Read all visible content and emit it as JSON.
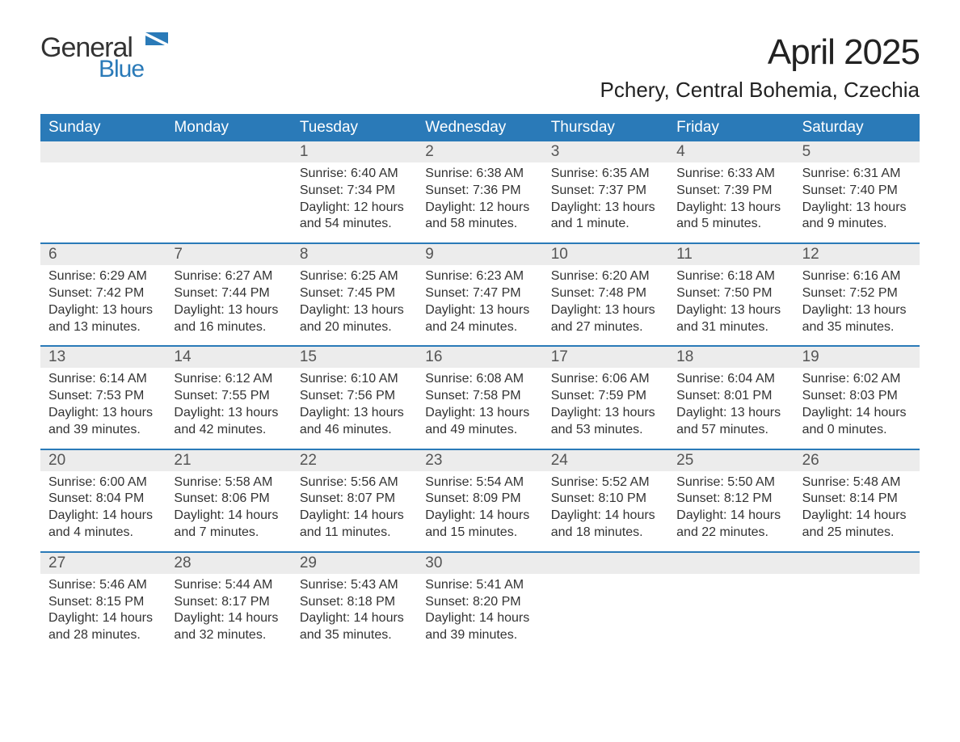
{
  "logo": {
    "top": "General",
    "bottom": "Blue",
    "flag_color": "#2a7ab8",
    "text_gray": "#333333"
  },
  "header": {
    "month_title": "April 2025",
    "location": "Pchery, Central Bohemia, Czechia"
  },
  "colors": {
    "header_bg": "#2a7ab8",
    "header_text": "#ffffff",
    "daynum_bg": "#ececec",
    "daynum_text": "#555555",
    "body_text": "#333333",
    "week_border": "#2a7ab8",
    "page_bg": "#ffffff"
  },
  "fonts": {
    "title_size_pt": 33,
    "location_size_pt": 20,
    "weekday_size_pt": 14,
    "body_size_pt": 12
  },
  "weekdays": [
    "Sunday",
    "Monday",
    "Tuesday",
    "Wednesday",
    "Thursday",
    "Friday",
    "Saturday"
  ],
  "weeks": [
    [
      {
        "n": "",
        "sunrise": "",
        "sunset": "",
        "daylight": ""
      },
      {
        "n": "",
        "sunrise": "",
        "sunset": "",
        "daylight": ""
      },
      {
        "n": "1",
        "sunrise": "Sunrise: 6:40 AM",
        "sunset": "Sunset: 7:34 PM",
        "daylight": "Daylight: 12 hours and 54 minutes."
      },
      {
        "n": "2",
        "sunrise": "Sunrise: 6:38 AM",
        "sunset": "Sunset: 7:36 PM",
        "daylight": "Daylight: 12 hours and 58 minutes."
      },
      {
        "n": "3",
        "sunrise": "Sunrise: 6:35 AM",
        "sunset": "Sunset: 7:37 PM",
        "daylight": "Daylight: 13 hours and 1 minute."
      },
      {
        "n": "4",
        "sunrise": "Sunrise: 6:33 AM",
        "sunset": "Sunset: 7:39 PM",
        "daylight": "Daylight: 13 hours and 5 minutes."
      },
      {
        "n": "5",
        "sunrise": "Sunrise: 6:31 AM",
        "sunset": "Sunset: 7:40 PM",
        "daylight": "Daylight: 13 hours and 9 minutes."
      }
    ],
    [
      {
        "n": "6",
        "sunrise": "Sunrise: 6:29 AM",
        "sunset": "Sunset: 7:42 PM",
        "daylight": "Daylight: 13 hours and 13 minutes."
      },
      {
        "n": "7",
        "sunrise": "Sunrise: 6:27 AM",
        "sunset": "Sunset: 7:44 PM",
        "daylight": "Daylight: 13 hours and 16 minutes."
      },
      {
        "n": "8",
        "sunrise": "Sunrise: 6:25 AM",
        "sunset": "Sunset: 7:45 PM",
        "daylight": "Daylight: 13 hours and 20 minutes."
      },
      {
        "n": "9",
        "sunrise": "Sunrise: 6:23 AM",
        "sunset": "Sunset: 7:47 PM",
        "daylight": "Daylight: 13 hours and 24 minutes."
      },
      {
        "n": "10",
        "sunrise": "Sunrise: 6:20 AM",
        "sunset": "Sunset: 7:48 PM",
        "daylight": "Daylight: 13 hours and 27 minutes."
      },
      {
        "n": "11",
        "sunrise": "Sunrise: 6:18 AM",
        "sunset": "Sunset: 7:50 PM",
        "daylight": "Daylight: 13 hours and 31 minutes."
      },
      {
        "n": "12",
        "sunrise": "Sunrise: 6:16 AM",
        "sunset": "Sunset: 7:52 PM",
        "daylight": "Daylight: 13 hours and 35 minutes."
      }
    ],
    [
      {
        "n": "13",
        "sunrise": "Sunrise: 6:14 AM",
        "sunset": "Sunset: 7:53 PM",
        "daylight": "Daylight: 13 hours and 39 minutes."
      },
      {
        "n": "14",
        "sunrise": "Sunrise: 6:12 AM",
        "sunset": "Sunset: 7:55 PM",
        "daylight": "Daylight: 13 hours and 42 minutes."
      },
      {
        "n": "15",
        "sunrise": "Sunrise: 6:10 AM",
        "sunset": "Sunset: 7:56 PM",
        "daylight": "Daylight: 13 hours and 46 minutes."
      },
      {
        "n": "16",
        "sunrise": "Sunrise: 6:08 AM",
        "sunset": "Sunset: 7:58 PM",
        "daylight": "Daylight: 13 hours and 49 minutes."
      },
      {
        "n": "17",
        "sunrise": "Sunrise: 6:06 AM",
        "sunset": "Sunset: 7:59 PM",
        "daylight": "Daylight: 13 hours and 53 minutes."
      },
      {
        "n": "18",
        "sunrise": "Sunrise: 6:04 AM",
        "sunset": "Sunset: 8:01 PM",
        "daylight": "Daylight: 13 hours and 57 minutes."
      },
      {
        "n": "19",
        "sunrise": "Sunrise: 6:02 AM",
        "sunset": "Sunset: 8:03 PM",
        "daylight": "Daylight: 14 hours and 0 minutes."
      }
    ],
    [
      {
        "n": "20",
        "sunrise": "Sunrise: 6:00 AM",
        "sunset": "Sunset: 8:04 PM",
        "daylight": "Daylight: 14 hours and 4 minutes."
      },
      {
        "n": "21",
        "sunrise": "Sunrise: 5:58 AM",
        "sunset": "Sunset: 8:06 PM",
        "daylight": "Daylight: 14 hours and 7 minutes."
      },
      {
        "n": "22",
        "sunrise": "Sunrise: 5:56 AM",
        "sunset": "Sunset: 8:07 PM",
        "daylight": "Daylight: 14 hours and 11 minutes."
      },
      {
        "n": "23",
        "sunrise": "Sunrise: 5:54 AM",
        "sunset": "Sunset: 8:09 PM",
        "daylight": "Daylight: 14 hours and 15 minutes."
      },
      {
        "n": "24",
        "sunrise": "Sunrise: 5:52 AM",
        "sunset": "Sunset: 8:10 PM",
        "daylight": "Daylight: 14 hours and 18 minutes."
      },
      {
        "n": "25",
        "sunrise": "Sunrise: 5:50 AM",
        "sunset": "Sunset: 8:12 PM",
        "daylight": "Daylight: 14 hours and 22 minutes."
      },
      {
        "n": "26",
        "sunrise": "Sunrise: 5:48 AM",
        "sunset": "Sunset: 8:14 PM",
        "daylight": "Daylight: 14 hours and 25 minutes."
      }
    ],
    [
      {
        "n": "27",
        "sunrise": "Sunrise: 5:46 AM",
        "sunset": "Sunset: 8:15 PM",
        "daylight": "Daylight: 14 hours and 28 minutes."
      },
      {
        "n": "28",
        "sunrise": "Sunrise: 5:44 AM",
        "sunset": "Sunset: 8:17 PM",
        "daylight": "Daylight: 14 hours and 32 minutes."
      },
      {
        "n": "29",
        "sunrise": "Sunrise: 5:43 AM",
        "sunset": "Sunset: 8:18 PM",
        "daylight": "Daylight: 14 hours and 35 minutes."
      },
      {
        "n": "30",
        "sunrise": "Sunrise: 5:41 AM",
        "sunset": "Sunset: 8:20 PM",
        "daylight": "Daylight: 14 hours and 39 minutes."
      },
      {
        "n": "",
        "sunrise": "",
        "sunset": "",
        "daylight": ""
      },
      {
        "n": "",
        "sunrise": "",
        "sunset": "",
        "daylight": ""
      },
      {
        "n": "",
        "sunrise": "",
        "sunset": "",
        "daylight": ""
      }
    ]
  ]
}
